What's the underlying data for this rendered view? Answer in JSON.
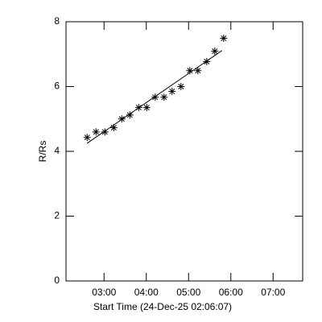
{
  "chart_data": {
    "type": "scatter",
    "xlabel": "Start Time (24-Dec-25 02:06:07)",
    "ylabel": "R/Rs",
    "xlim": [
      2.1,
      7.7
    ],
    "ylim": [
      0,
      8
    ],
    "xticks": [
      {
        "value": 3,
        "label": "03:00"
      },
      {
        "value": 4,
        "label": "04:00"
      },
      {
        "value": 5,
        "label": "05:00"
      },
      {
        "value": 6,
        "label": "06:00"
      },
      {
        "value": 7,
        "label": "07:00"
      }
    ],
    "yticks": [
      0,
      2,
      4,
      6,
      8
    ],
    "series": [
      {
        "style": "asterisk",
        "color": "#000000",
        "x": [
          2.6,
          2.81,
          3.02,
          3.23,
          3.42,
          3.61,
          3.82,
          4.01,
          4.21,
          4.42,
          4.61,
          4.82,
          5.03,
          5.22,
          5.43,
          5.62,
          5.83
        ],
        "values": [
          4.43,
          4.6,
          4.6,
          4.73,
          5.0,
          5.12,
          5.35,
          5.35,
          5.67,
          5.67,
          5.85,
          6.0,
          6.49,
          6.49,
          6.77,
          7.09,
          7.49
        ]
      },
      {
        "style": "line",
        "color": "#000000",
        "x": [
          2.6,
          5.79
        ],
        "values": [
          4.25,
          7.11
        ]
      }
    ]
  }
}
